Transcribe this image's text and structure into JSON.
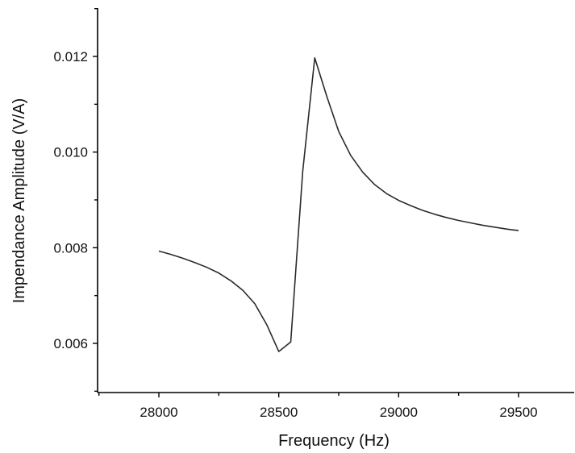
{
  "chart_data": {
    "type": "line",
    "title": "",
    "xlabel": "Frequency (Hz)",
    "ylabel": "Impendance Amplitude (V/A)",
    "xlim": [
      27750,
      29700
    ],
    "ylim": [
      0.005,
      0.013
    ],
    "x_ticks": [
      28000,
      28500,
      29000,
      29500
    ],
    "x_tick_labels": [
      "28000",
      "28500",
      "29000",
      "29500"
    ],
    "x_minor_ticks": [
      27750,
      28250,
      28750,
      29250
    ],
    "y_ticks": [
      0.006,
      0.008,
      0.01,
      0.012
    ],
    "y_tick_labels": [
      "0.006",
      "0.008",
      "0.010",
      "0.012"
    ],
    "y_minor_ticks": [
      0.005,
      0.007,
      0.009,
      0.011,
      0.013
    ],
    "grid": false,
    "line_color": "#2a2a2a",
    "series": [
      {
        "x": [
          28000,
          28050,
          28100,
          28150,
          28200,
          28250,
          28300,
          28350,
          28400,
          28450,
          28500,
          28550,
          28600,
          28650,
          28700,
          28750,
          28800,
          28850,
          28900,
          28950,
          29000,
          29050,
          29100,
          29150,
          29200,
          29250,
          29300,
          29350,
          29400,
          29450,
          29500
        ],
        "y": [
          0.00793,
          0.00786,
          0.00778,
          0.00769,
          0.00759,
          0.00747,
          0.00731,
          0.00711,
          0.00683,
          0.00639,
          0.00583,
          0.00603,
          0.0096,
          0.01197,
          0.01117,
          0.01043,
          0.00993,
          0.00958,
          0.00932,
          0.00913,
          0.00899,
          0.00888,
          0.00878,
          0.0087,
          0.00863,
          0.00857,
          0.00852,
          0.00847,
          0.00843,
          0.00839,
          0.00836
        ]
      }
    ]
  }
}
